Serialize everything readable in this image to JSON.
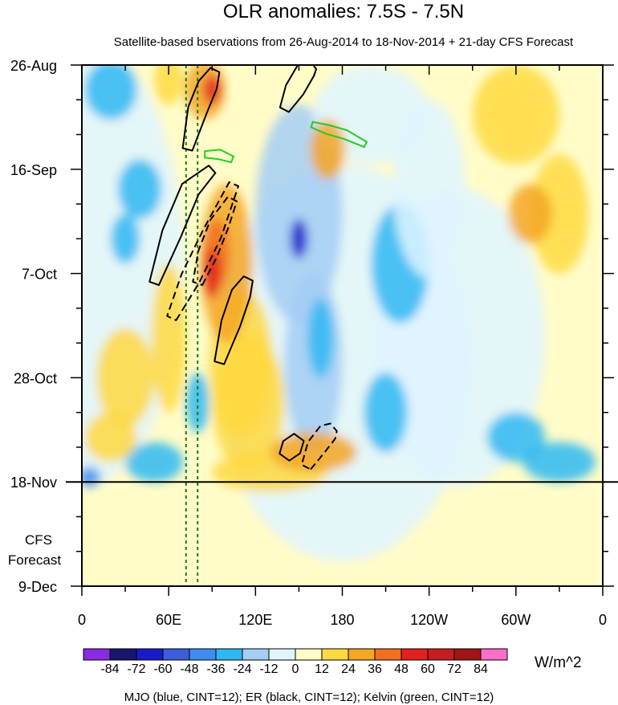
{
  "chart_data": {
    "type": "heatmap",
    "title": "OLR anomalies: 7.5S - 7.5N",
    "subtitle": "Satellite-based bservations from 26-Aug-2014 to 18-Nov-2014 + 21-day CFS Forecast",
    "x_ticks": [
      "0",
      "60E",
      "120E",
      "180",
      "120W",
      "60W",
      "0"
    ],
    "x_tick_lon": [
      0,
      60,
      120,
      180,
      240,
      300,
      360
    ],
    "y_ticks": [
      "26-Aug",
      "16-Sep",
      "7-Oct",
      "28-Oct",
      "18-Nov",
      "9-Dec"
    ],
    "y_tick_day": [
      0,
      21,
      42,
      63,
      84,
      105
    ],
    "forecast_label_lines": [
      "CFS",
      "Forecast"
    ],
    "observation_end_day": 84,
    "units": "W/m^2",
    "colorbar_levels": [
      -84,
      -72,
      -60,
      -48,
      -36,
      -24,
      -12,
      0,
      12,
      24,
      36,
      48,
      60,
      72,
      84
    ],
    "colorbar_colors": [
      "#8a2be2",
      "#16166e",
      "#1a1acd",
      "#3c5fd9",
      "#3f8cf0",
      "#2eb8f2",
      "#a5cef5",
      "#dff4ff",
      "#fffcc8",
      "#ffd940",
      "#f5a623",
      "#f07020",
      "#e32020",
      "#c41e1e",
      "#a01515",
      "#ff6ec7"
    ],
    "footer": "MJO (blue, CINT=12); ER (black, CINT=12); Kelvin (green, CINT=12)",
    "reference_lines_lon": [
      72,
      80
    ],
    "er_contours": [
      {
        "style": "solid",
        "points": [
          [
            73,
            17
          ],
          [
            80,
            9
          ],
          [
            87,
            4
          ],
          [
            92,
            1
          ]
        ]
      },
      {
        "style": "solid",
        "points": [
          [
            140,
            9
          ],
          [
            147,
            5
          ],
          [
            155,
            1
          ],
          [
            160,
            0
          ]
        ]
      },
      {
        "style": "solid",
        "points": [
          [
            50,
            44
          ],
          [
            62,
            34
          ],
          [
            75,
            25
          ],
          [
            90,
            21
          ]
        ]
      },
      {
        "style": "solid",
        "points": [
          [
            95,
            60
          ],
          [
            103,
            52
          ],
          [
            110,
            46
          ],
          [
            115,
            43
          ]
        ]
      },
      {
        "style": "dashed",
        "points": [
          [
            62,
            51
          ],
          [
            75,
            43
          ],
          [
            90,
            34
          ],
          [
            105,
            24
          ]
        ]
      },
      {
        "style": "dashed",
        "points": [
          [
            80,
            44
          ],
          [
            87,
            38
          ],
          [
            95,
            32
          ],
          [
            104,
            27
          ]
        ]
      },
      {
        "style": "dashed",
        "points": [
          [
            155,
            81
          ],
          [
            162,
            77
          ],
          [
            170,
            74
          ],
          [
            174,
            73
          ]
        ]
      },
      {
        "style": "solid",
        "points": [
          [
            140,
            79
          ],
          [
            145,
            77
          ],
          [
            150,
            75
          ]
        ]
      }
    ],
    "kelvin_contours": [
      {
        "points": [
          [
            159,
            12
          ],
          [
            170,
            13
          ],
          [
            182,
            14
          ],
          [
            196,
            16
          ]
        ]
      },
      {
        "points": [
          [
            85,
            18
          ],
          [
            95,
            18
          ],
          [
            104,
            19
          ]
        ]
      }
    ]
  }
}
